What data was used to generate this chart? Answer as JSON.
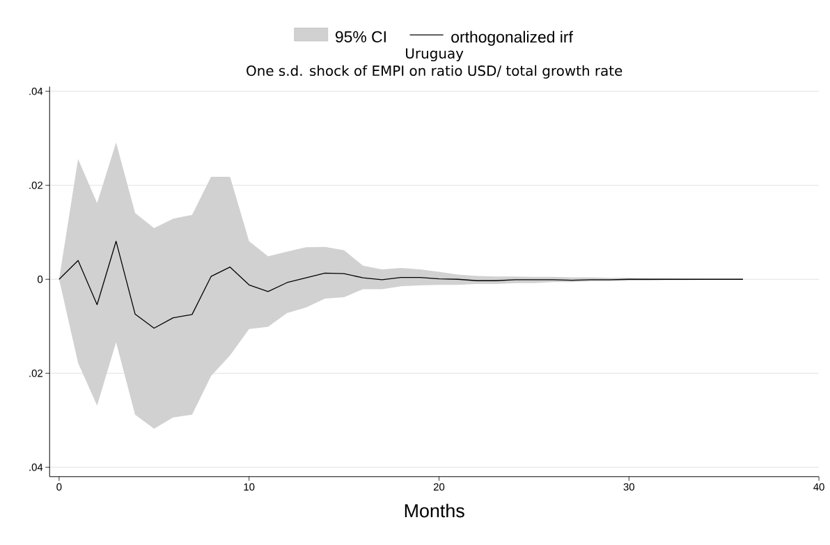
{
  "chart_data": {
    "type": "line",
    "title": "Uruguay",
    "subtitle": "One s.d. shock of EMPI on ratio USD/ total growth rate",
    "xlabel": "Months",
    "x": [
      0,
      1,
      2,
      3,
      4,
      5,
      6,
      7,
      8,
      9,
      10,
      11,
      12,
      13,
      14,
      15,
      16,
      17,
      18,
      19,
      20,
      21,
      22,
      23,
      24,
      25,
      26,
      27,
      28,
      29,
      30,
      31,
      32,
      33,
      34,
      35,
      36
    ],
    "series": [
      {
        "name": "orthogonalized irf",
        "color": "#000000",
        "values": [
          0,
          0.004,
          -0.0054,
          0.0081,
          -0.0074,
          -0.0104,
          -0.0082,
          -0.0075,
          0.0006,
          0.0026,
          -0.0012,
          -0.0026,
          -0.0007,
          0.0003,
          0.0013,
          0.0012,
          0.0003,
          -0.0001,
          0.0004,
          0.0004,
          0.0001,
          0,
          -0.0003,
          -0.0003,
          -0.0001,
          -0.0001,
          -0.0001,
          -0.0002,
          -0.0001,
          -0.0001,
          0,
          0,
          0,
          0,
          0,
          0,
          0
        ],
        "upper": [
          0,
          0.0256,
          0.0162,
          0.0291,
          0.0141,
          0.0109,
          0.0129,
          0.0137,
          0.0218,
          0.0218,
          0.0081,
          0.0049,
          0.0059,
          0.0068,
          0.0069,
          0.0062,
          0.0029,
          0.0021,
          0.0024,
          0.0021,
          0.0016,
          0.001,
          0.0007,
          0.0006,
          0.0006,
          0.0005,
          0.0005,
          0.0004,
          0.0004,
          0.0003,
          0.0003,
          0.0002,
          0.0002,
          0.0001,
          0.0001,
          0.0001,
          0.0001
        ],
        "lower": [
          0,
          -0.0178,
          -0.0269,
          -0.0134,
          -0.0288,
          -0.0318,
          -0.0294,
          -0.0288,
          -0.0206,
          -0.0162,
          -0.0106,
          -0.0101,
          -0.0072,
          -0.006,
          -0.0041,
          -0.0038,
          -0.0021,
          -0.0021,
          -0.0015,
          -0.0013,
          -0.0012,
          -0.0012,
          -0.001,
          -0.001,
          -0.0008,
          -0.0008,
          -0.0006,
          -0.0006,
          -0.0004,
          -0.0004,
          -0.0003,
          -0.0003,
          -0.0002,
          -0.0002,
          -0.0001,
          -0.0001,
          -0.0001
        ]
      }
    ],
    "annotations": [
      "95% CI"
    ],
    "xlim": [
      -0.5,
      40
    ],
    "ylim": [
      -0.042,
      0.041
    ],
    "xticks": [
      0,
      10,
      20,
      30,
      40
    ],
    "yticks": [
      {
        "value": -0.04,
        "label": ".04"
      },
      {
        "value": -0.02,
        "label": ".02"
      },
      0,
      {
        "value": 0.02,
        "label": ".02"
      },
      {
        "value": 0.04,
        "label": ".04"
      }
    ],
    "grid": "y",
    "legend": "top",
    "marker": "none",
    "line_style": "solid"
  }
}
